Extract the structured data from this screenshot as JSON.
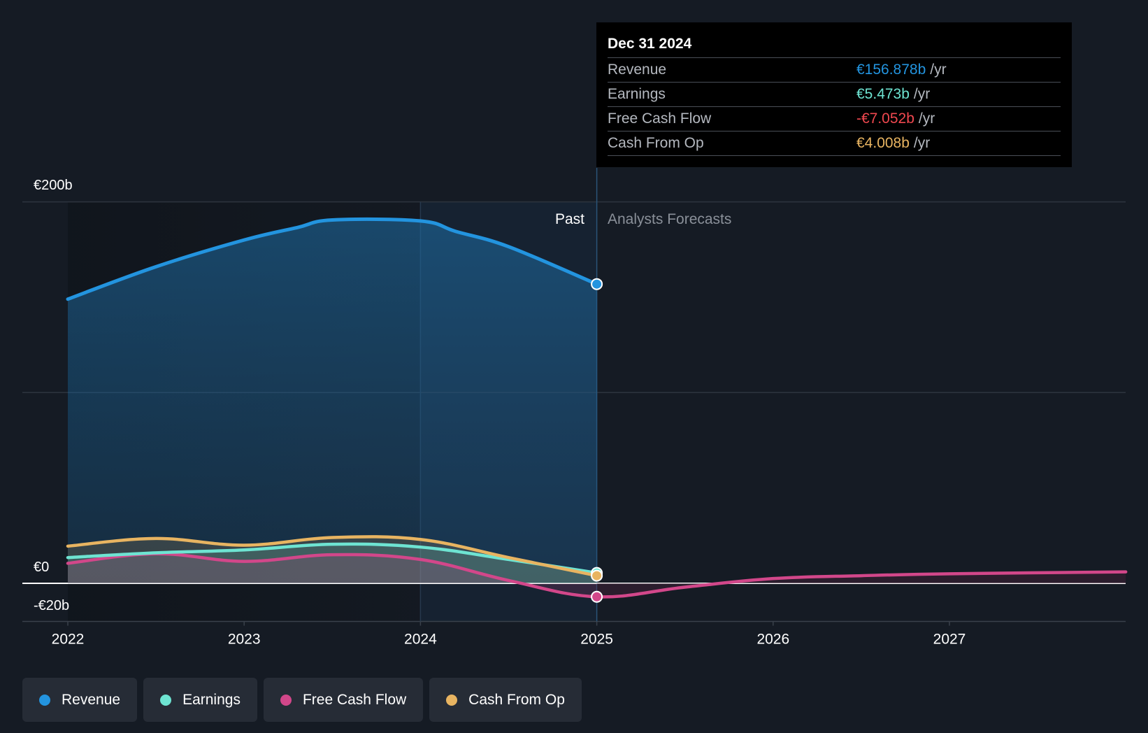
{
  "colors": {
    "background": "#151b24",
    "revenue": "#2394df",
    "earnings": "#6ee4d2",
    "free_cash_flow": "#d2478a",
    "cash_from_op": "#e8b461",
    "grid": "#2d343e",
    "zero_line": "#ffffff"
  },
  "tooltip": {
    "date": "Dec 31 2024",
    "rows": [
      {
        "name": "Revenue",
        "value": "€156.878b",
        "unit": "/yr",
        "color": "#2394df"
      },
      {
        "name": "Earnings",
        "value": "€5.473b",
        "unit": "/yr",
        "color": "#6ee4d2"
      },
      {
        "name": "Free Cash Flow",
        "value": "-€7.052b",
        "unit": "/yr",
        "color": "#f0484f"
      },
      {
        "name": "Cash From Op",
        "value": "€4.008b",
        "unit": "/yr",
        "color": "#e8b461"
      }
    ]
  },
  "legend": [
    {
      "label": "Revenue",
      "color": "#2394df"
    },
    {
      "label": "Earnings",
      "color": "#6ee4d2"
    },
    {
      "label": "Free Cash Flow",
      "color": "#d2478a"
    },
    {
      "label": "Cash From Op",
      "color": "#e8b461"
    }
  ],
  "chart_data": {
    "type": "area",
    "title": "",
    "xlabel": "",
    "ylabel": "",
    "y_tick_labels": {
      "top": "€200b",
      "zero": "€0",
      "bottom": "-€20b"
    },
    "ylim": [
      -20,
      200
    ],
    "xlim": [
      2022.0,
      2028.0
    ],
    "x_ticks": [
      2022,
      2023,
      2024,
      2025,
      2026,
      2027
    ],
    "x_tick_labels": [
      "2022",
      "2023",
      "2024",
      "2025",
      "2026",
      "2027"
    ],
    "period_labels": {
      "past": "Past",
      "forecast": "Analysts Forecasts"
    },
    "past_end_x": 2025.0,
    "series": [
      {
        "name": "Revenue",
        "key": "revenue",
        "points": [
          [
            2022.0,
            149.0
          ],
          [
            2022.5,
            166.0
          ],
          [
            2023.0,
            180.0
          ],
          [
            2023.3,
            186.5
          ],
          [
            2023.5,
            190.5
          ],
          [
            2024.0,
            190.0
          ],
          [
            2024.2,
            184.5
          ],
          [
            2024.5,
            176.5
          ],
          [
            2025.0,
            156.878
          ]
        ]
      },
      {
        "name": "Earnings",
        "key": "earnings",
        "points": [
          [
            2022.0,
            13.5
          ],
          [
            2022.5,
            16.0
          ],
          [
            2023.0,
            17.5
          ],
          [
            2023.5,
            20.5
          ],
          [
            2024.0,
            19.0
          ],
          [
            2024.5,
            12.5
          ],
          [
            2025.0,
            5.473
          ]
        ]
      },
      {
        "name": "Free Cash Flow",
        "key": "free_cash_flow",
        "points": [
          [
            2022.0,
            10.5
          ],
          [
            2022.5,
            15.5
          ],
          [
            2023.0,
            11.5
          ],
          [
            2023.5,
            15.0
          ],
          [
            2024.0,
            12.5
          ],
          [
            2024.5,
            1.5
          ],
          [
            2025.0,
            -7.052
          ],
          [
            2025.5,
            -2.0
          ],
          [
            2026.0,
            2.5
          ],
          [
            2026.5,
            4.0
          ],
          [
            2027.0,
            5.0
          ],
          [
            2028.0,
            6.0
          ]
        ]
      },
      {
        "name": "Cash From Op",
        "key": "cash_from_op",
        "points": [
          [
            2022.0,
            19.5
          ],
          [
            2022.5,
            23.5
          ],
          [
            2023.0,
            20.0
          ],
          [
            2023.5,
            24.0
          ],
          [
            2024.0,
            23.0
          ],
          [
            2024.5,
            13.5
          ],
          [
            2025.0,
            4.008
          ]
        ]
      }
    ],
    "highlight_x": 2025.0
  }
}
